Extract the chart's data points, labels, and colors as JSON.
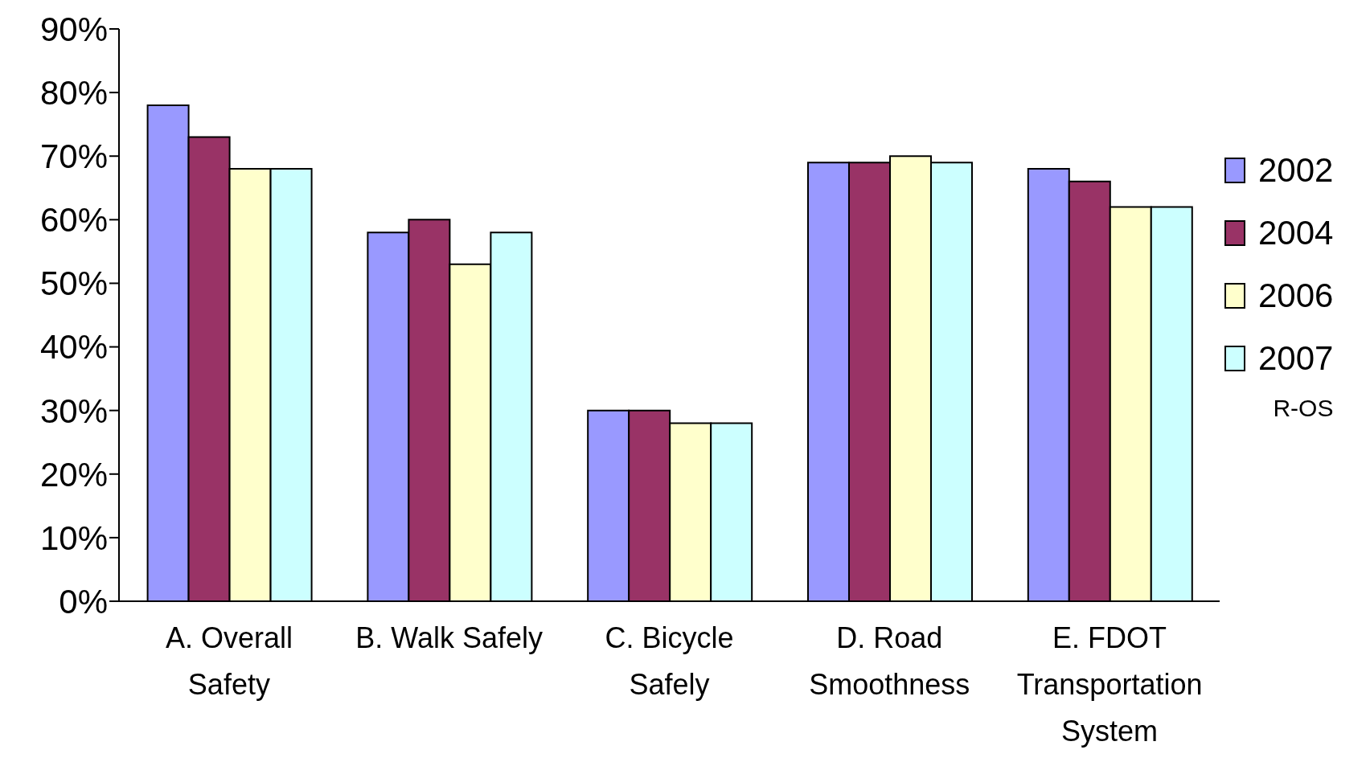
{
  "chart_data": {
    "type": "bar",
    "categories": [
      "A. Overall Safety",
      "B. Walk Safely",
      "C. Bicycle Safely",
      "D. Road Smoothness",
      "E. FDOT Transportation System"
    ],
    "series": [
      {
        "name": "2002",
        "color": "#9999ff",
        "values": [
          78,
          58,
          30,
          69,
          68
        ]
      },
      {
        "name": "2004",
        "color": "#993366",
        "values": [
          73,
          60,
          30,
          69,
          66
        ]
      },
      {
        "name": "2006",
        "color": "#ffffcc",
        "values": [
          68,
          53,
          28,
          70,
          62
        ]
      },
      {
        "name": "2007",
        "color": "#ccffff",
        "values": [
          68,
          58,
          28,
          69,
          62
        ]
      }
    ],
    "ylim": [
      0,
      90
    ],
    "yticks": [
      {
        "value": 0,
        "label": "0%"
      },
      {
        "value": 10,
        "label": "10%"
      },
      {
        "value": 20,
        "label": "20%"
      },
      {
        "value": 30,
        "label": "30%"
      },
      {
        "value": 40,
        "label": "40%"
      },
      {
        "value": 50,
        "label": "50%"
      },
      {
        "value": 60,
        "label": "60%"
      },
      {
        "value": 70,
        "label": "70%"
      },
      {
        "value": 80,
        "label": "80%"
      },
      {
        "value": 90,
        "label": "90%"
      }
    ],
    "grid": false,
    "legend": "right",
    "annotations": [
      "R-OS"
    ]
  }
}
